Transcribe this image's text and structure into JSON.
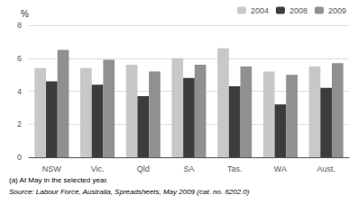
{
  "chart_data": {
    "type": "bar",
    "categories": [
      "NSW",
      "Vic.",
      "Qld",
      "SA",
      "Tas.",
      "WA",
      "Aust."
    ],
    "series": [
      {
        "name": "2004",
        "color": "#c8c8c8",
        "values": [
          5.4,
          5.4,
          5.6,
          6.0,
          6.6,
          5.2,
          5.5
        ]
      },
      {
        "name": "2008",
        "color": "#3c3c3c",
        "values": [
          4.6,
          4.4,
          3.7,
          4.8,
          4.3,
          3.2,
          4.2
        ]
      },
      {
        "name": "2009",
        "color": "#909090",
        "values": [
          6.5,
          5.9,
          5.2,
          5.6,
          5.5,
          5.0,
          5.7
        ]
      }
    ],
    "ylabel": "%",
    "ylim": [
      0,
      8
    ],
    "yticks": [
      0,
      2,
      4,
      6,
      8
    ],
    "grid": true,
    "legend": "upper right",
    "annotations": [
      "(a) At May in the selected year.",
      "Source: Labour Force, Australia, Spreadsheets, May 2009 (cat. no. 6202.0)"
    ]
  }
}
